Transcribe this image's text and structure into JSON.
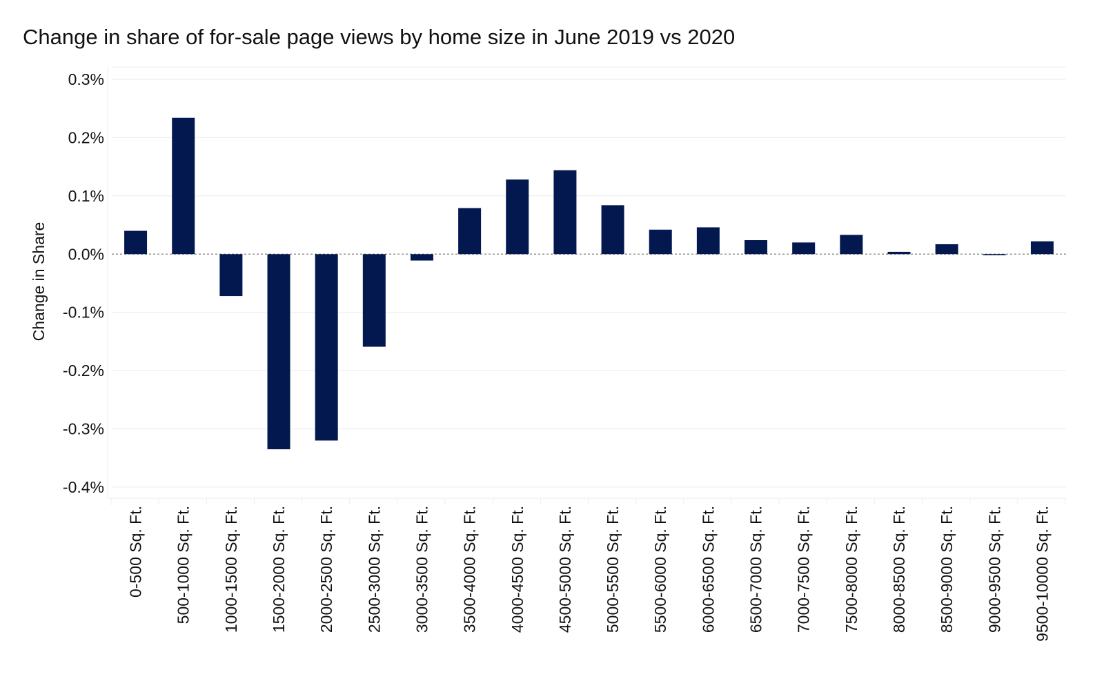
{
  "chart_data": {
    "type": "bar",
    "title": "Change in share of for-sale page views by home size in June 2019 vs 2020",
    "xlabel": "",
    "ylabel": "Change in Share",
    "ylim": [
      -0.4,
      0.3
    ],
    "yticks": [
      "0.3%",
      "0.2%",
      "0.1%",
      "0.0%",
      "-0.1%",
      "-0.2%",
      "-0.3%",
      "-0.4%"
    ],
    "ytick_values": [
      0.3,
      0.2,
      0.1,
      0.0,
      -0.1,
      -0.2,
      -0.3,
      -0.4
    ],
    "y_unit": "%",
    "grid": true,
    "zero_line": "dashed",
    "bar_color": "#041850",
    "categories": [
      "0-500 Sq. Ft.",
      "500-1000 Sq. Ft.",
      "1000-1500 Sq. Ft.",
      "1500-2000 Sq. Ft.",
      "2000-2500 Sq. Ft.",
      "2500-3000 Sq. Ft.",
      "3000-3500 Sq. Ft.",
      "3500-4000 Sq. Ft.",
      "4000-4500 Sq. Ft.",
      "4500-5000 Sq. Ft.",
      "5000-5500 Sq. Ft.",
      "5500-6000 Sq. Ft.",
      "6000-6500 Sq. Ft.",
      "6500-7000 Sq. Ft.",
      "7000-7500 Sq. Ft.",
      "7500-8000 Sq. Ft.",
      "8000-8500 Sq. Ft.",
      "8500-9000 Sq. Ft.",
      "9000-9500 Sq. Ft.",
      "9500-10000 Sq. Ft."
    ],
    "values": [
      0.04,
      0.234,
      -0.072,
      -0.335,
      -0.32,
      -0.159,
      -0.011,
      0.079,
      0.128,
      0.144,
      0.084,
      0.042,
      0.046,
      0.024,
      0.02,
      0.033,
      0.004,
      0.017,
      -0.002,
      0.022
    ]
  }
}
